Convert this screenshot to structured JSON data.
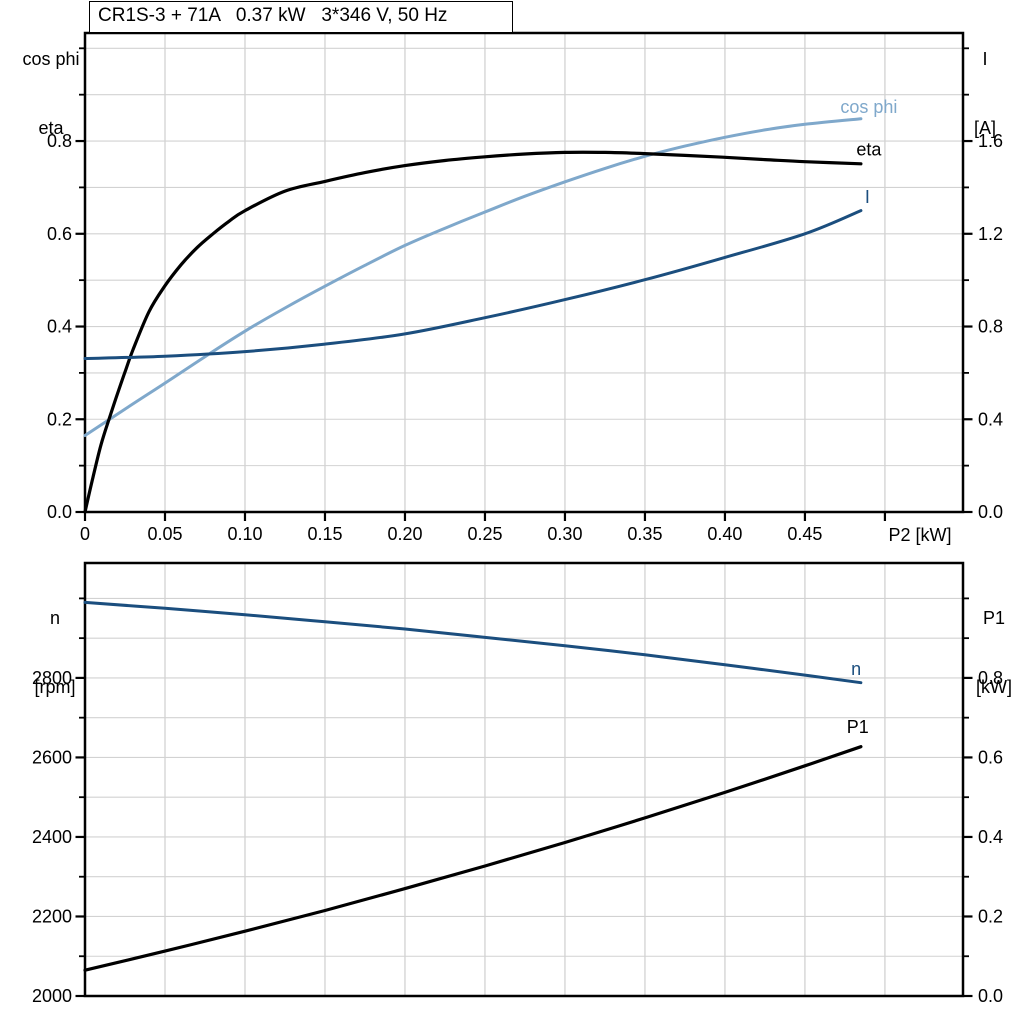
{
  "title_box": "CR1S-3 + 71A   0.37 kW   3*346 V, 50 Hz",
  "colors": {
    "black": "#000000",
    "steel_blue": "#7FA8CB",
    "navy": "#1B4E7E",
    "grid": "#D2D2D2",
    "axis": "#000000"
  },
  "chart_data": [
    {
      "id": "motor-curves",
      "type": "line",
      "title": "CR1S-3 + 71A   0.37 kW   3*346 V, 50 Hz",
      "xlabel": "P2 [kW]",
      "xlim": [
        0,
        0.5488
      ],
      "grid": true,
      "x_ticks": {
        "draw_labels": true,
        "values": [
          0,
          0.05,
          0.1,
          0.15,
          0.2,
          0.25,
          0.3,
          0.35,
          0.4,
          0.45,
          0.5
        ],
        "labels": [
          "0",
          "0.05",
          "0.10",
          "0.15",
          "0.20",
          "0.25",
          "0.30",
          "0.35",
          "0.40",
          "0.45",
          ""
        ]
      },
      "left_axis": {
        "title_lines": [
          "cos phi",
          "eta"
        ],
        "lim": [
          0,
          1.033
        ],
        "tick_values": [
          0,
          0.2,
          0.4,
          0.6,
          0.8
        ],
        "tick_labels": [
          "0.0",
          "0.2",
          "0.4",
          "0.6",
          "0.8"
        ],
        "minor_step": 0.1,
        "grid_step": 0.1
      },
      "right_axis": {
        "title_lines": [
          "I",
          "[A]"
        ],
        "lim": [
          0,
          2.066
        ],
        "tick_values": [
          0,
          0.4,
          0.8,
          1.2,
          1.6
        ],
        "tick_labels": [
          "0.0",
          "0.4",
          "0.8",
          "1.2",
          "1.6"
        ],
        "minor_step": 0.2
      },
      "series": [
        {
          "name": "cos phi",
          "axis": "left",
          "color_key": "steel_blue",
          "width": 3,
          "x": [
            0,
            0.025,
            0.05,
            0.075,
            0.1,
            0.125,
            0.15,
            0.175,
            0.2,
            0.225,
            0.25,
            0.275,
            0.3,
            0.325,
            0.35,
            0.375,
            0.4,
            0.425,
            0.45,
            0.485
          ],
          "y": [
            0.165,
            0.222,
            0.278,
            0.335,
            0.39,
            0.44,
            0.487,
            0.532,
            0.575,
            0.612,
            0.647,
            0.681,
            0.712,
            0.741,
            0.767,
            0.789,
            0.808,
            0.824,
            0.836,
            0.848
          ],
          "label": {
            "text": "cos phi",
            "x": 0.49,
            "y": 0.873
          }
        },
        {
          "name": "eta",
          "axis": "left",
          "color_key": "black",
          "width": 3.2,
          "x": [
            0,
            0.005,
            0.01,
            0.015,
            0.02,
            0.025,
            0.03,
            0.04,
            0.05,
            0.06,
            0.07,
            0.08,
            0.09,
            0.1,
            0.125,
            0.15,
            0.175,
            0.2,
            0.225,
            0.25,
            0.275,
            0.3,
            0.325,
            0.35,
            0.375,
            0.4,
            0.425,
            0.45,
            0.485
          ],
          "y": [
            0,
            0.075,
            0.145,
            0.2,
            0.252,
            0.302,
            0.35,
            0.432,
            0.488,
            0.533,
            0.57,
            0.6,
            0.627,
            0.65,
            0.692,
            0.713,
            0.732,
            0.747,
            0.758,
            0.766,
            0.772,
            0.7755,
            0.7755,
            0.773,
            0.769,
            0.765,
            0.76,
            0.7555,
            0.751
          ],
          "label": {
            "text": "eta",
            "x": 0.49,
            "y": 0.782
          }
        },
        {
          "name": "I",
          "axis": "right",
          "color_key": "navy",
          "width": 3,
          "x": [
            0,
            0.05,
            0.1,
            0.15,
            0.2,
            0.25,
            0.3,
            0.35,
            0.4,
            0.45,
            0.485
          ],
          "y": [
            0.662,
            0.672,
            0.692,
            0.724,
            0.768,
            0.838,
            0.916,
            1.002,
            1.098,
            1.2,
            1.3
          ],
          "label": {
            "text": "I",
            "x": 0.489,
            "y": 1.358
          }
        }
      ]
    },
    {
      "id": "speed-power-curves",
      "type": "line",
      "title": "",
      "xlabel": "",
      "xlim": [
        0,
        0.5488
      ],
      "grid": true,
      "x_ticks": {
        "draw_labels": false,
        "values": [
          0.05,
          0.1,
          0.15,
          0.2,
          0.25,
          0.3,
          0.35,
          0.4,
          0.45,
          0.5
        ],
        "labels": [
          "",
          "",
          "",
          "",
          "",
          "",
          "",
          "",
          "",
          ""
        ]
      },
      "left_axis": {
        "title_lines": [
          "n",
          "[rpm]"
        ],
        "lim": [
          2000,
          3089
        ],
        "tick_values": [
          2000,
          2200,
          2400,
          2600,
          2800
        ],
        "tick_labels": [
          "2000",
          "2200",
          "2400",
          "2600",
          "2800"
        ],
        "minor_step": 100,
        "grid_step": 100
      },
      "right_axis": {
        "title_lines": [
          "P1",
          "[kW]"
        ],
        "lim": [
          0,
          1.089
        ],
        "tick_values": [
          0,
          0.2,
          0.4,
          0.6,
          0.8
        ],
        "tick_labels": [
          "0.0",
          "0.2",
          "0.4",
          "0.6",
          "0.8"
        ],
        "minor_step": 0.1
      },
      "series": [
        {
          "name": "n",
          "axis": "left",
          "color_key": "navy",
          "width": 3,
          "x": [
            0,
            0.05,
            0.1,
            0.15,
            0.2,
            0.25,
            0.3,
            0.35,
            0.4,
            0.45,
            0.485
          ],
          "y": [
            2990,
            2975,
            2959,
            2941,
            2923,
            2902,
            2881,
            2858,
            2833,
            2807,
            2788
          ],
          "label": {
            "text": "n",
            "x": 0.482,
            "y": 2822
          }
        },
        {
          "name": "P1",
          "axis": "right",
          "color_key": "black",
          "width": 3.2,
          "x": [
            0,
            0.05,
            0.1,
            0.15,
            0.2,
            0.25,
            0.3,
            0.35,
            0.4,
            0.45,
            0.485
          ],
          "y": [
            0.065,
            0.113,
            0.163,
            0.215,
            0.27,
            0.327,
            0.386,
            0.448,
            0.512,
            0.579,
            0.627
          ],
          "label": {
            "text": "P1",
            "x": 0.483,
            "y": 0.677
          }
        }
      ]
    }
  ]
}
